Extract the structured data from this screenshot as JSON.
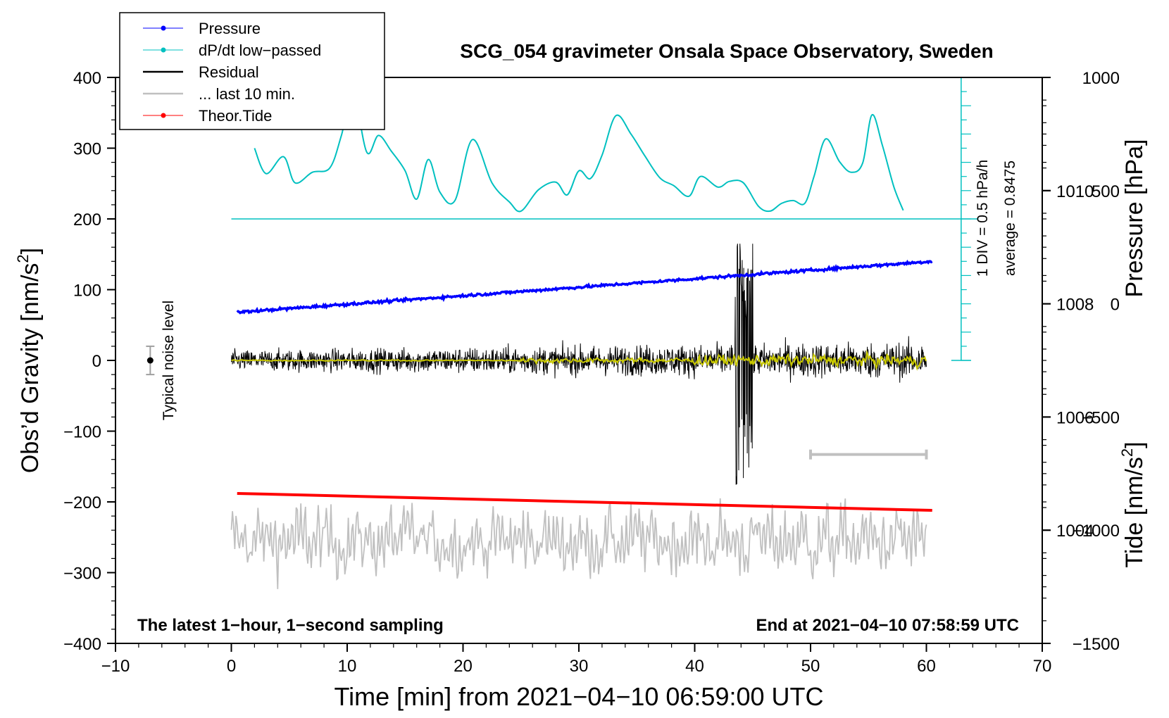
{
  "chart_data": {
    "type": "line",
    "title": "SCG_054 gravimeter Onsala Space Observatory, Sweden",
    "xlabel": "Time [min] from 2021−04−10 06:59:00 UTC",
    "ylabel_left_main": "Obs’d Gravity [nm/s",
    "ylabel_left_sup": "2",
    "ylabel_left_end": "]",
    "ylabel_right_top": "Pressure [hPa]",
    "ylabel_right_bottom_main": "Tide [nm/s",
    "ylabel_right_bottom_sup": "2",
    "ylabel_right_bottom_end": "]",
    "xlim": [
      -10,
      70
    ],
    "ylim": [
      -400,
      400
    ],
    "pressure_ylim": [
      1002,
      1012
    ],
    "tide_ylim": [
      -1500,
      1000
    ],
    "x_ticks": [
      {
        "v": -10,
        "t": "−10"
      },
      {
        "v": 0,
        "t": "0"
      },
      {
        "v": 10,
        "t": "10"
      },
      {
        "v": 20,
        "t": "20"
      },
      {
        "v": 30,
        "t": "30"
      },
      {
        "v": 40,
        "t": "40"
      },
      {
        "v": 50,
        "t": "50"
      },
      {
        "v": 60,
        "t": "60"
      },
      {
        "v": 70,
        "t": "70"
      }
    ],
    "y_ticks": [
      {
        "v": 400,
        "t": "400"
      },
      {
        "v": 300,
        "t": "300"
      },
      {
        "v": 200,
        "t": "200"
      },
      {
        "v": 100,
        "t": "100"
      },
      {
        "v": 0,
        "t": "0"
      },
      {
        "v": -100,
        "t": "−100"
      },
      {
        "v": -200,
        "t": "−200"
      },
      {
        "v": -300,
        "t": "−300"
      },
      {
        "v": -400,
        "t": "−400"
      }
    ],
    "pressure_ticks": [
      {
        "v": 1010,
        "t": "1010"
      },
      {
        "v": 1008,
        "t": "1008"
      },
      {
        "v": 1006,
        "t": "1006"
      },
      {
        "v": 1004,
        "t": "1004"
      }
    ],
    "tide_ticks": [
      {
        "v": 1000,
        "t": "1000"
      },
      {
        "v": 500,
        "t": "500"
      },
      {
        "v": 0,
        "t": "0"
      },
      {
        "v": -500,
        "t": "−500"
      },
      {
        "v": -1000,
        "t": "−1000"
      },
      {
        "v": -1500,
        "t": "−1500"
      }
    ],
    "legend": [
      {
        "label": "Pressure",
        "color": "#0000ff",
        "marker": true
      },
      {
        "label": "dP/dt low−passed",
        "color": "#00c0c0",
        "marker": true
      },
      {
        "label": "Residual",
        "color": "#000000",
        "marker": false
      },
      {
        "label": "... last 10 min.",
        "color": "#c0c0c0",
        "marker": false
      },
      {
        "label": "Theor.Tide",
        "color": "#ff0000",
        "marker": true
      }
    ],
    "legend_position": "top-left",
    "series": {
      "pressure": {
        "name": "Pressure",
        "color": "#0000ff",
        "axis": "pressure",
        "x_range": [
          0.5,
          60.5
        ],
        "start": 1007.85,
        "end": 1008.75
      },
      "dpdt": {
        "name": "dP/dt low−passed",
        "color": "#00c0c0",
        "axis": "gravity",
        "baseline": 200,
        "x": [
          2,
          3,
          4.5,
          5.5,
          7,
          8.5,
          9.5,
          10.5,
          11.7,
          12.7,
          13.8,
          15,
          16,
          17,
          18,
          19.3,
          20.8,
          22.5,
          24,
          25,
          26.5,
          28,
          29,
          30,
          31,
          32,
          33.2,
          34.5,
          35.7,
          37,
          38.2,
          39.5,
          40.5,
          42,
          43,
          44.2,
          45.5,
          46.5,
          47.5,
          48.5,
          49.5,
          50.3,
          51.3,
          52.5,
          53.5,
          54.5,
          55.3,
          56.2,
          57.2,
          58
        ],
        "y": [
          300,
          264,
          288,
          251,
          266,
          272,
          318,
          378,
          294,
          318,
          296,
          268,
          228,
          284,
          238,
          226,
          312,
          251,
          224,
          211,
          241,
          252,
          234,
          268,
          257,
          290,
          346,
          320,
          289,
          258,
          247,
          232,
          260,
          245,
          253,
          251,
          218,
          211,
          222,
          226,
          222,
          260,
          313,
          281,
          266,
          279,
          347,
          304,
          245,
          212
        ]
      },
      "residual": {
        "name": "Residual",
        "color": "#000000",
        "axis": "gravity",
        "x_range": [
          0,
          60
        ],
        "noise_amplitude": 40,
        "burst_x": [
          43.5,
          45
        ],
        "burst_range": [
          -195,
          165
        ]
      },
      "last10": {
        "name": "... last 10 min.",
        "color": "#c0c0c0",
        "axis": "gravity",
        "x_range": [
          0,
          60
        ],
        "offset": -255,
        "amplitude": 65
      },
      "filtered": {
        "name": "filtered residual",
        "color": "#c8c800",
        "axis": "gravity",
        "x_range": [
          0,
          60
        ]
      },
      "tide": {
        "name": "Theor.Tide",
        "color": "#ff0000",
        "axis": "gravity",
        "x_range": [
          0.5,
          60.5
        ],
        "start": -188,
        "end": -212
      }
    },
    "noise_bar": {
      "x": -7,
      "y": 0,
      "half_range": 20,
      "label": "Typical noise level"
    },
    "scale_bar": {
      "x_range": [
        50,
        60
      ],
      "y": -133
    },
    "dpdt_axis": {
      "label1": "1 DIV = 0.5 hPa/h",
      "label2": "average = 0.8475",
      "x": 63
    },
    "annotations": {
      "bottom_left": "The latest 1−hour, 1−second sampling",
      "bottom_right": "End at 2021−04−10 07:58:59 UTC"
    }
  }
}
